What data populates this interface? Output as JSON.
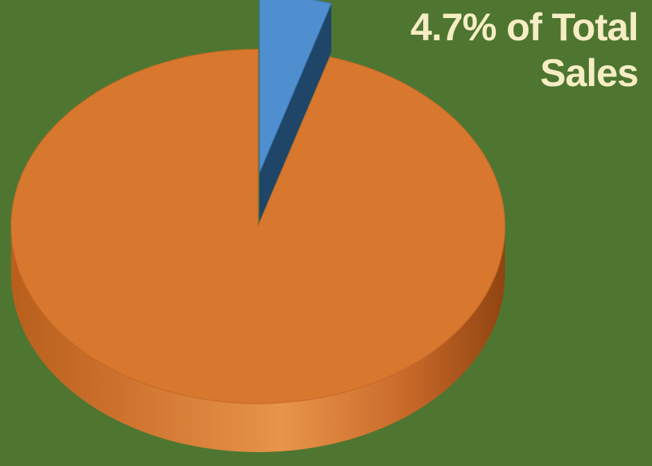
{
  "chart_data": {
    "type": "pie",
    "title": "",
    "slices": [
      {
        "value": 4.7,
        "color": "#4f8fcf",
        "exploded": true
      },
      {
        "value": 95.3,
        "color": "#d8772e",
        "exploded": false
      }
    ],
    "annotation": {
      "line1": "4.7% of Total",
      "line2": "Sales"
    },
    "style_3d": true,
    "background": "#4e7631",
    "leader_line_color": "#e8c81e"
  }
}
